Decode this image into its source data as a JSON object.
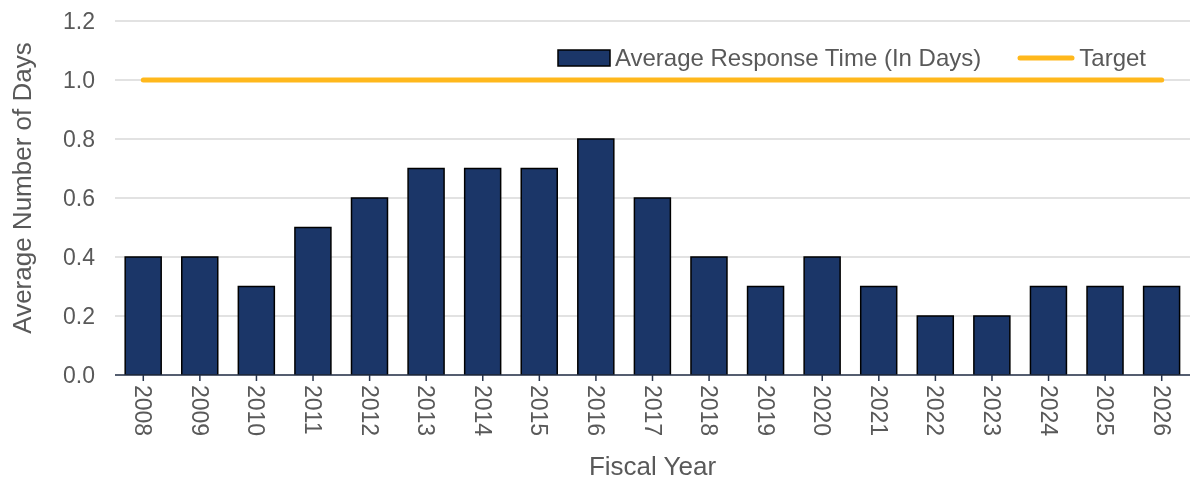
{
  "chart_data": {
    "type": "bar",
    "xlabel": "Fiscal Year",
    "ylabel": "Average Number of Days",
    "categories": [
      "2008",
      "2009",
      "2010",
      "2011",
      "2012",
      "2013",
      "2014",
      "2015",
      "2016",
      "2017",
      "2018",
      "2019",
      "2020",
      "2021",
      "2022",
      "2023",
      "2024",
      "2025",
      "2026"
    ],
    "series": [
      {
        "name": "Average Response Time (In Days)",
        "color": "#1b3668",
        "values": [
          0.4,
          0.4,
          0.3,
          0.5,
          0.6,
          0.7,
          0.7,
          0.7,
          0.8,
          0.6,
          0.4,
          0.3,
          0.4,
          0.3,
          0.2,
          0.2,
          0.3,
          0.3,
          0.3
        ]
      },
      {
        "name": "Target",
        "type": "line",
        "color": "#ffb81c",
        "values": [
          1.0,
          1.0,
          1.0,
          1.0,
          1.0,
          1.0,
          1.0,
          1.0,
          1.0,
          1.0,
          1.0,
          1.0,
          1.0,
          1.0,
          1.0,
          1.0,
          1.0,
          1.0,
          1.0
        ]
      }
    ],
    "ylim": [
      0,
      1.2
    ],
    "yticks": [
      {
        "value": 0,
        "label": "0.0"
      },
      0.2,
      0.4,
      0.6,
      0.8,
      {
        "value": 1,
        "label": "1.0"
      },
      {
        "value": 1.2,
        "label": "1.2"
      }
    ],
    "grid": "y",
    "legend": "top right"
  }
}
